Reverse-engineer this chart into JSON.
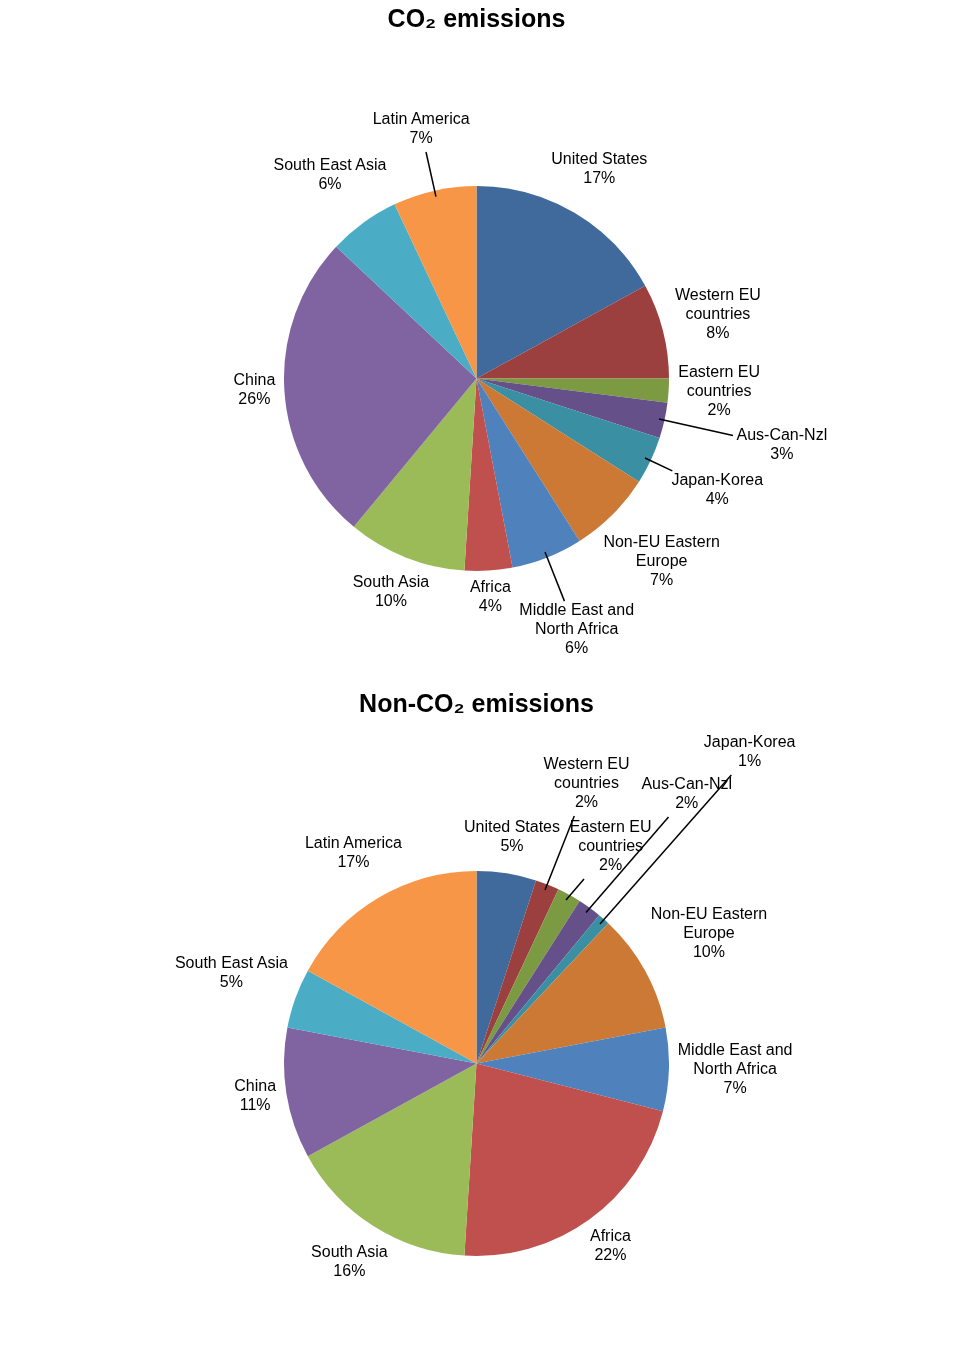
{
  "chart_data": [
    {
      "type": "pie",
      "title": "CO₂ emissions",
      "categories": [
        "United States",
        "Western EU countries",
        "Eastern EU countries",
        "Aus-Can-Nzl",
        "Japan-Korea",
        "Non-EU Eastern Europe",
        "Middle East and North Africa",
        "Africa",
        "South Asia",
        "China",
        "South East Asia",
        "Latin America"
      ],
      "values": [
        17,
        8,
        2,
        3,
        4,
        7,
        6,
        4,
        10,
        26,
        6,
        7
      ],
      "value_labels": [
        "17%",
        "8%",
        "2%",
        "3%",
        "4%",
        "7%",
        "6%",
        "4%",
        "10%",
        "26%",
        "6%",
        "7%"
      ],
      "colors": [
        "#3f6a9b",
        "#9b403e",
        "#7b9a42",
        "#65508a",
        "#3b8fa3",
        "#cb7934",
        "#4f81bd",
        "#c0504d",
        "#9bbb59",
        "#8064a2",
        "#4bacc6",
        "#f79646"
      ],
      "legend": false
    },
    {
      "type": "pie",
      "title": "Non-CO₂ emissions",
      "categories": [
        "United States",
        "Western EU countries",
        "Eastern EU countries",
        "Aus-Can-Nzl",
        "Japan-Korea",
        "Non-EU Eastern Europe",
        "Middle East and North Africa",
        "Africa",
        "South Asia",
        "China",
        "South East Asia",
        "Latin America"
      ],
      "values": [
        5,
        2,
        2,
        2,
        1,
        10,
        7,
        22,
        16,
        11,
        5,
        17
      ],
      "value_labels": [
        "5%",
        "2%",
        "2%",
        "2%",
        "1%",
        "10%",
        "7%",
        "22%",
        "16%",
        "11%",
        "5%",
        "17%"
      ],
      "colors": [
        "#3f6a9b",
        "#9b403e",
        "#7b9a42",
        "#65508a",
        "#3b8fa3",
        "#cb7934",
        "#4f81bd",
        "#c0504d",
        "#9bbb59",
        "#8064a2",
        "#4bacc6",
        "#f79646"
      ],
      "legend": false
    }
  ]
}
